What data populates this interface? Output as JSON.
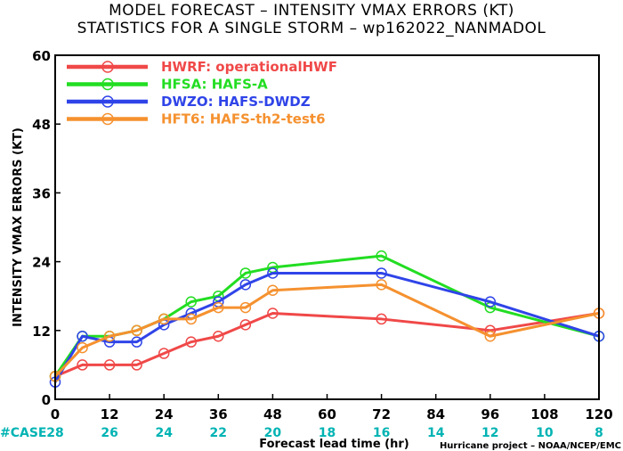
{
  "title_line1": "MODEL FORECAST – INTENSITY VMAX ERRORS (KT)",
  "title_line2": "STATISTICS FOR A SINGLE STORM – wp162022_NANMADOL",
  "case_header": "#CASE",
  "credit": "Hurricane project – NOAA/NCEP/EMC",
  "chart_data": {
    "type": "line",
    "xlabel": "Forecast lead time (hr)",
    "ylabel": "INTENSITY VMAX ERRORS (KT)",
    "xlim": [
      0,
      120
    ],
    "ylim": [
      0,
      60
    ],
    "x_ticks": [
      0,
      12,
      24,
      36,
      48,
      60,
      72,
      84,
      96,
      108,
      120
    ],
    "y_ticks": [
      0,
      12,
      24,
      36,
      48,
      60
    ],
    "case_counts": [
      {
        "x": 0,
        "n": "28"
      },
      {
        "x": 12,
        "n": "26"
      },
      {
        "x": 24,
        "n": "24"
      },
      {
        "x": 36,
        "n": "22"
      },
      {
        "x": 48,
        "n": "20"
      },
      {
        "x": 60,
        "n": "18"
      },
      {
        "x": 72,
        "n": "16"
      },
      {
        "x": 84,
        "n": "14"
      },
      {
        "x": 96,
        "n": "12"
      },
      {
        "x": 108,
        "n": "10"
      },
      {
        "x": 120,
        "n": "8"
      }
    ],
    "legend_position": "top-left",
    "series": [
      {
        "name": "HWRF: operationalHWF",
        "color": "#f04848",
        "x": [
          0,
          6,
          12,
          18,
          24,
          30,
          36,
          42,
          48,
          72,
          96,
          120
        ],
        "values": [
          4,
          6,
          6,
          6,
          8,
          10,
          11,
          13,
          15,
          14,
          12,
          15
        ]
      },
      {
        "name": "HFSA: HAFS-A",
        "color": "#22dd22",
        "x": [
          0,
          6,
          12,
          18,
          24,
          30,
          36,
          42,
          48,
          72,
          96,
          120
        ],
        "values": [
          4,
          11,
          11,
          12,
          14,
          17,
          18,
          22,
          23,
          25,
          16,
          11
        ]
      },
      {
        "name": "DWZO: HAFS-DWDZ",
        "color": "#2f44e8",
        "x": [
          0,
          6,
          12,
          18,
          24,
          30,
          36,
          42,
          48,
          72,
          96,
          120
        ],
        "values": [
          3,
          11,
          10,
          10,
          13,
          15,
          17,
          20,
          22,
          22,
          17,
          11
        ]
      },
      {
        "name": "HFT6: HAFS-th2-test6",
        "color": "#f5912f",
        "x": [
          0,
          6,
          12,
          18,
          24,
          30,
          36,
          42,
          48,
          72,
          96,
          120
        ],
        "values": [
          4,
          9,
          11,
          12,
          14,
          14,
          16,
          16,
          19,
          20,
          11,
          15
        ]
      }
    ]
  }
}
